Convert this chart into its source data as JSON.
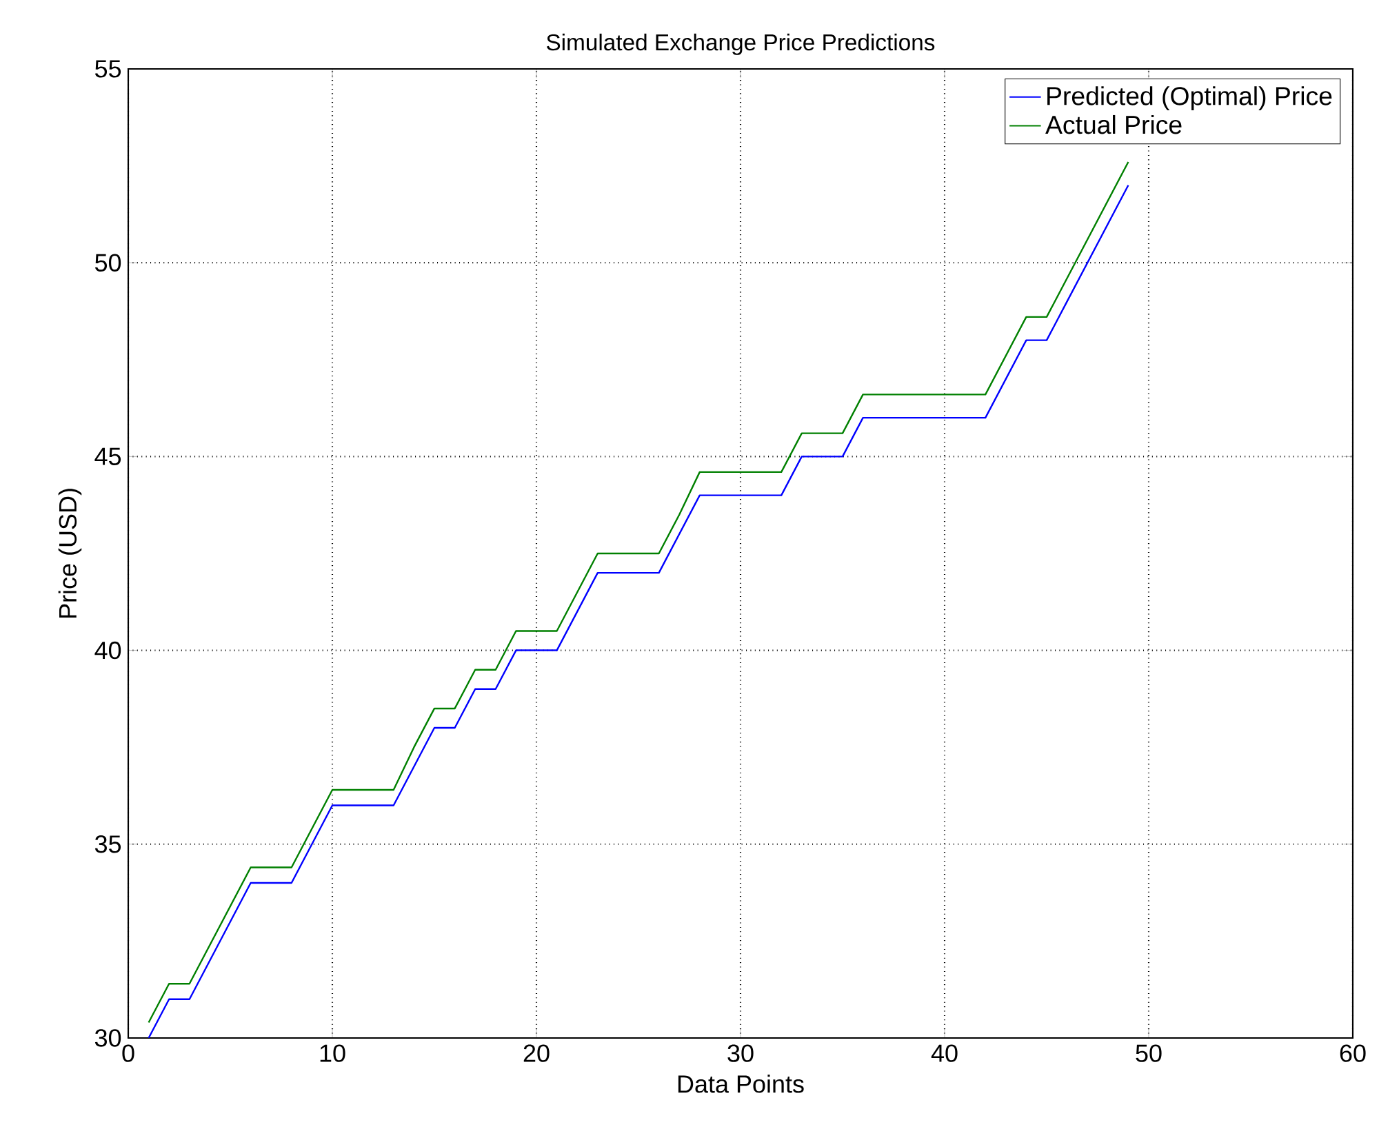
{
  "chart_data": {
    "type": "line",
    "title": "Simulated Exchange Price Predictions",
    "xlabel": "Data Points",
    "ylabel": "Price (USD)",
    "x": [
      1,
      2,
      3,
      4,
      5,
      6,
      7,
      8,
      9,
      10,
      11,
      12,
      13,
      14,
      15,
      16,
      17,
      18,
      19,
      20,
      21,
      22,
      23,
      24,
      25,
      26,
      27,
      28,
      29,
      30,
      31,
      32,
      33,
      34,
      35,
      36,
      37,
      38,
      39,
      40,
      41,
      42,
      43,
      44,
      45,
      46,
      47,
      48,
      49
    ],
    "series": [
      {
        "name": "Predicted (Optimal) Price",
        "color": "#0000ff",
        "values": [
          30,
          31,
          31,
          32,
          33,
          34,
          34,
          34,
          35,
          36,
          36,
          36,
          36,
          37,
          38,
          38,
          39,
          39,
          40,
          40,
          40,
          41,
          42,
          42,
          42,
          42,
          43,
          44,
          44,
          44,
          44,
          44,
          45,
          45,
          45,
          46,
          46,
          46,
          46,
          46,
          46,
          46,
          47,
          48,
          48,
          49,
          50,
          51,
          52
        ]
      },
      {
        "name": "Actual Price",
        "color": "#008000",
        "values": [
          30.4,
          31.4,
          31.4,
          32.4,
          33.4,
          34.4,
          34.4,
          34.4,
          35.4,
          36.4,
          36.4,
          36.4,
          36.4,
          37.5,
          38.5,
          38.5,
          39.5,
          39.5,
          40.5,
          40.5,
          40.5,
          41.5,
          42.5,
          42.5,
          42.5,
          42.5,
          43.5,
          44.6,
          44.6,
          44.6,
          44.6,
          44.6,
          45.6,
          45.6,
          45.6,
          46.6,
          46.6,
          46.6,
          46.6,
          46.6,
          46.6,
          46.6,
          47.6,
          48.6,
          48.6,
          49.6,
          50.6,
          51.6,
          52.6
        ]
      }
    ],
    "xlim": [
      0,
      60
    ],
    "ylim": [
      30,
      55
    ],
    "xticks": [
      0,
      10,
      20,
      30,
      40,
      50,
      60
    ],
    "yticks": [
      30,
      35,
      40,
      45,
      50,
      55
    ],
    "grid": true,
    "legend": "top right",
    "line_style": "solid"
  }
}
